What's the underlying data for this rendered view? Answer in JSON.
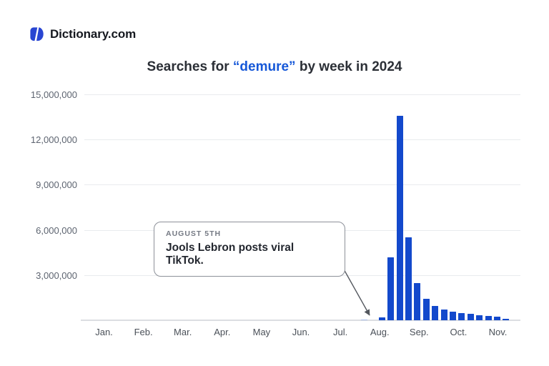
{
  "brand": {
    "name": "Dictionary.com",
    "logo_color": "#2946d2"
  },
  "title": {
    "prefix": "Searches for ",
    "highlight": "“demure”",
    "suffix": " by week in 2024",
    "highlight_color": "#1658d8",
    "text_color": "#2b2f36"
  },
  "annotation": {
    "eyebrow": "AUGUST 5TH",
    "text": "Jools Lebron posts viral TikTok."
  },
  "chart_data": {
    "type": "bar",
    "title": "Searches for “demure” by week in 2024",
    "xlabel": "",
    "ylabel": "",
    "ylim": [
      0,
      15000000
    ],
    "grid": true,
    "legend": "none",
    "bar_color": "#1349cc",
    "bar_color_light": "#a9bdea",
    "yticks": [
      {
        "value": 15000000,
        "label": "15,000,000"
      },
      {
        "value": 12000000,
        "label": "12,000,000"
      },
      {
        "value": 9000000,
        "label": "9,000,000"
      },
      {
        "value": 6000000,
        "label": "6,000,000"
      },
      {
        "value": 3000000,
        "label": "3,000,000"
      }
    ],
    "months": [
      "Jan.",
      "Feb.",
      "Mar.",
      "Apr.",
      "May",
      "Jun.",
      "Jul.",
      "Aug.",
      "Sep.",
      "Oct.",
      "Nov."
    ],
    "weeks_jan_through_mid_jul_value": 0,
    "weeks": [
      {
        "week": "Jul 22",
        "value": 60000,
        "light": true
      },
      {
        "week": "Jul 29",
        "value": 0
      },
      {
        "week": "Aug 5",
        "value": 200000
      },
      {
        "week": "Aug 12",
        "value": 4200000
      },
      {
        "week": "Aug 19",
        "value": 13600000
      },
      {
        "week": "Aug 26",
        "value": 5500000
      },
      {
        "week": "Sep 2",
        "value": 2450000
      },
      {
        "week": "Sep 9",
        "value": 1430000
      },
      {
        "week": "Sep 16",
        "value": 950000
      },
      {
        "week": "Sep 23",
        "value": 700000
      },
      {
        "week": "Sep 30",
        "value": 560000
      },
      {
        "week": "Oct 7",
        "value": 480000
      },
      {
        "week": "Oct 14",
        "value": 430000
      },
      {
        "week": "Oct 21",
        "value": 350000
      },
      {
        "week": "Oct 28",
        "value": 290000
      },
      {
        "week": "Nov 4",
        "value": 240000
      },
      {
        "week": "Nov 11",
        "value": 110000
      }
    ]
  }
}
